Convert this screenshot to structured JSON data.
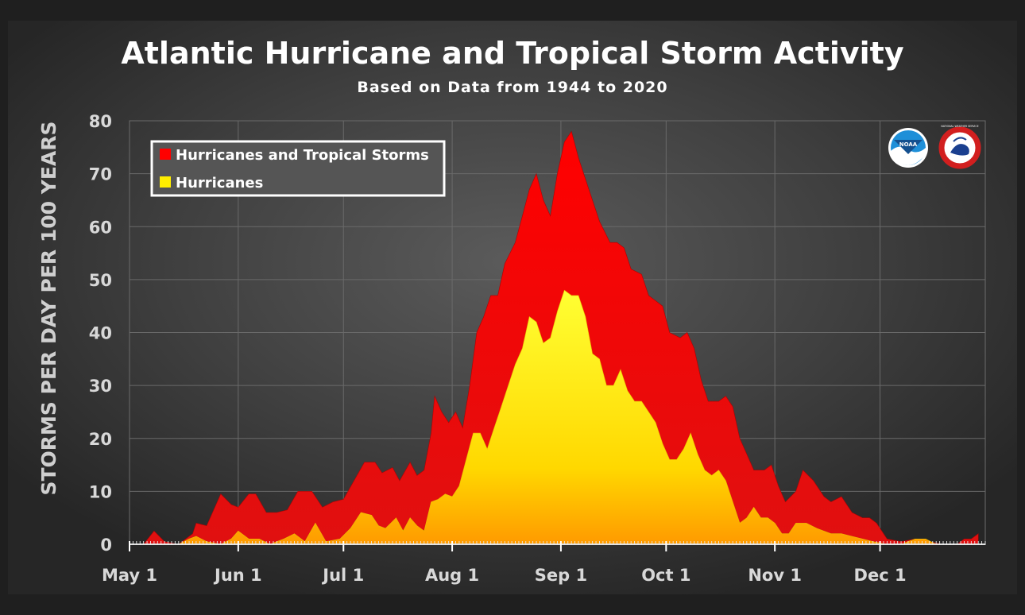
{
  "chart_data": {
    "type": "area",
    "title": "Atlantic Hurricane and Tropical Storm Activity",
    "subtitle": "Based on Data from 1944 to 2020",
    "ylabel": "STORMS PER DAY PER 100 YEARS",
    "xlabel": "",
    "ylim": [
      0,
      80
    ],
    "yticks": [
      0,
      10,
      20,
      30,
      40,
      50,
      60,
      70,
      80
    ],
    "x_axis": {
      "unit": "day_of_year_from_may_1",
      "range": [
        0,
        244
      ]
    },
    "xticks": [
      {
        "label": "May 1",
        "x": 0
      },
      {
        "label": "Jun 1",
        "x": 31
      },
      {
        "label": "Jul 1",
        "x": 61
      },
      {
        "label": "Aug 1",
        "x": 92
      },
      {
        "label": "Sep 1",
        "x": 123
      },
      {
        "label": "Oct 1",
        "x": 153
      },
      {
        "label": "Nov 1",
        "x": 184
      },
      {
        "label": "Dec 1",
        "x": 214
      }
    ],
    "grid": true,
    "legend_position": "top-left",
    "series": [
      {
        "name": "Hurricanes and Tropical Storms",
        "color": "#ff0000",
        "points": [
          [
            0,
            0
          ],
          [
            4,
            0
          ],
          [
            7,
            2.5
          ],
          [
            10,
            0.5
          ],
          [
            14,
            0
          ],
          [
            18,
            2
          ],
          [
            19,
            4
          ],
          [
            22,
            3.5
          ],
          [
            26,
            9.5
          ],
          [
            29,
            7.5
          ],
          [
            31,
            7
          ],
          [
            34,
            9.5
          ],
          [
            36,
            9.5
          ],
          [
            39,
            6
          ],
          [
            42,
            6
          ],
          [
            45,
            6.5
          ],
          [
            48,
            10
          ],
          [
            52,
            10
          ],
          [
            55,
            7
          ],
          [
            58,
            8
          ],
          [
            61,
            8.5
          ],
          [
            64,
            12
          ],
          [
            67,
            15.5
          ],
          [
            70,
            15.5
          ],
          [
            72,
            13.5
          ],
          [
            75,
            14.5
          ],
          [
            77,
            12
          ],
          [
            80,
            15.5
          ],
          [
            82,
            13
          ],
          [
            84,
            14
          ],
          [
            86,
            21
          ],
          [
            87,
            28
          ],
          [
            89,
            25
          ],
          [
            91,
            23
          ],
          [
            93,
            25
          ],
          [
            95,
            22
          ],
          [
            97,
            30
          ],
          [
            99,
            40
          ],
          [
            101,
            43
          ],
          [
            103,
            47
          ],
          [
            105,
            47
          ],
          [
            107,
            53
          ],
          [
            110,
            57
          ],
          [
            112,
            62
          ],
          [
            114,
            67
          ],
          [
            116,
            70
          ],
          [
            118,
            65
          ],
          [
            120,
            62
          ],
          [
            122,
            70
          ],
          [
            124,
            76
          ],
          [
            126,
            78
          ],
          [
            128,
            73
          ],
          [
            131,
            67
          ],
          [
            134,
            61
          ],
          [
            137,
            57
          ],
          [
            139,
            57
          ],
          [
            141,
            56
          ],
          [
            143,
            52
          ],
          [
            146,
            51
          ],
          [
            148,
            47
          ],
          [
            150,
            46
          ],
          [
            152,
            45
          ],
          [
            154,
            40
          ],
          [
            157,
            39
          ],
          [
            159,
            40
          ],
          [
            161,
            37
          ],
          [
            163,
            31
          ],
          [
            165,
            27
          ],
          [
            168,
            27
          ],
          [
            170,
            28
          ],
          [
            172,
            26
          ],
          [
            174,
            20
          ],
          [
            176,
            17
          ],
          [
            178,
            14
          ],
          [
            181,
            14
          ],
          [
            183,
            15
          ],
          [
            185,
            11
          ],
          [
            187,
            8
          ],
          [
            190,
            10
          ],
          [
            192,
            14
          ],
          [
            195,
            12
          ],
          [
            198,
            9
          ],
          [
            200,
            8
          ],
          [
            203,
            9
          ],
          [
            206,
            6
          ],
          [
            209,
            5
          ],
          [
            211,
            5
          ],
          [
            213,
            4
          ],
          [
            216,
            1
          ],
          [
            220,
            0.5
          ],
          [
            224,
            1
          ],
          [
            228,
            0.5
          ],
          [
            232,
            0
          ],
          [
            236,
            0
          ],
          [
            238,
            1
          ],
          [
            240,
            1
          ],
          [
            242,
            2
          ]
        ]
      },
      {
        "name": "Hurricanes",
        "color": "#ffee00",
        "points": [
          [
            0,
            0
          ],
          [
            14,
            0
          ],
          [
            17,
            1
          ],
          [
            19,
            1.5
          ],
          [
            22,
            0.5
          ],
          [
            26,
            0
          ],
          [
            29,
            1
          ],
          [
            31,
            2.5
          ],
          [
            34,
            1
          ],
          [
            37,
            1
          ],
          [
            40,
            0
          ],
          [
            44,
            1
          ],
          [
            47,
            2
          ],
          [
            50,
            0.5
          ],
          [
            53,
            4
          ],
          [
            56,
            0.5
          ],
          [
            60,
            1
          ],
          [
            63,
            3
          ],
          [
            66,
            6
          ],
          [
            69,
            5.5
          ],
          [
            71,
            3.5
          ],
          [
            73,
            3
          ],
          [
            76,
            5
          ],
          [
            78,
            2.5
          ],
          [
            80,
            5
          ],
          [
            82,
            3.5
          ],
          [
            84,
            2.5
          ],
          [
            86,
            8
          ],
          [
            88,
            8.5
          ],
          [
            90,
            9.5
          ],
          [
            92,
            9
          ],
          [
            94,
            11
          ],
          [
            96,
            16
          ],
          [
            98,
            21
          ],
          [
            100,
            21
          ],
          [
            102,
            18
          ],
          [
            104,
            22
          ],
          [
            106,
            26
          ],
          [
            108,
            30
          ],
          [
            110,
            34
          ],
          [
            112,
            37
          ],
          [
            114,
            43
          ],
          [
            116,
            42
          ],
          [
            118,
            38
          ],
          [
            120,
            39
          ],
          [
            122,
            44
          ],
          [
            124,
            48
          ],
          [
            126,
            47
          ],
          [
            128,
            47
          ],
          [
            130,
            43
          ],
          [
            132,
            36
          ],
          [
            134,
            35
          ],
          [
            136,
            30
          ],
          [
            138,
            30
          ],
          [
            140,
            33
          ],
          [
            142,
            29
          ],
          [
            144,
            27
          ],
          [
            146,
            27
          ],
          [
            148,
            25
          ],
          [
            150,
            23
          ],
          [
            152,
            19
          ],
          [
            154,
            16
          ],
          [
            156,
            16
          ],
          [
            158,
            18
          ],
          [
            160,
            21
          ],
          [
            162,
            17
          ],
          [
            164,
            14
          ],
          [
            166,
            13
          ],
          [
            168,
            14
          ],
          [
            170,
            12
          ],
          [
            172,
            8
          ],
          [
            174,
            4
          ],
          [
            176,
            5
          ],
          [
            178,
            7
          ],
          [
            180,
            5
          ],
          [
            182,
            5
          ],
          [
            184,
            4
          ],
          [
            186,
            2
          ],
          [
            188,
            2
          ],
          [
            190,
            4
          ],
          [
            193,
            4
          ],
          [
            196,
            3
          ],
          [
            200,
            2
          ],
          [
            203,
            2
          ],
          [
            206,
            1.5
          ],
          [
            209,
            1
          ],
          [
            212,
            0.5
          ],
          [
            216,
            0
          ],
          [
            220,
            0
          ],
          [
            224,
            1
          ],
          [
            227,
            1
          ],
          [
            230,
            0
          ],
          [
            236,
            0
          ],
          [
            240,
            0
          ],
          [
            244,
            0
          ]
        ]
      }
    ]
  },
  "logos": [
    {
      "name": "noaa-logo",
      "text": "NOAA"
    },
    {
      "name": "nws-logo",
      "text": "NATIONAL WEATHER SERVICE"
    }
  ]
}
